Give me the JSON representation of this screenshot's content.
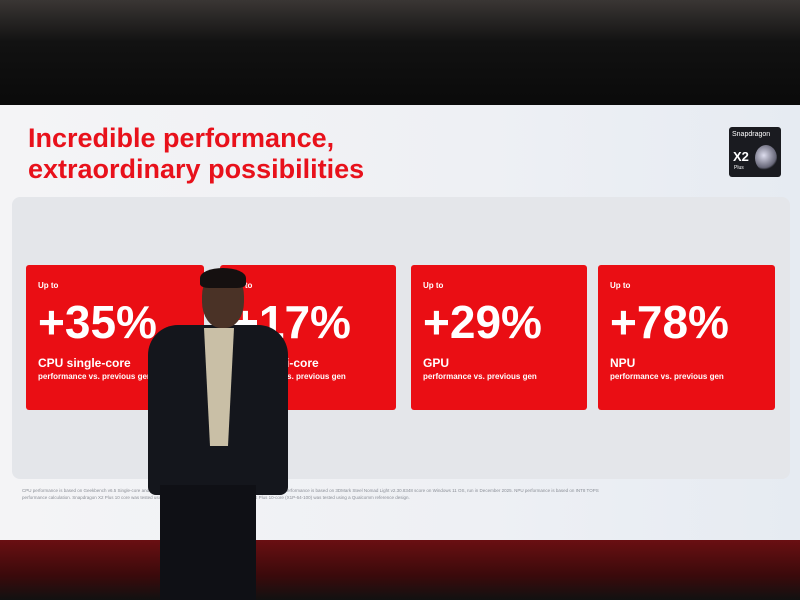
{
  "slide": {
    "title_line1": "Incredible performance,",
    "title_line2": "extraordinary possibilities",
    "logo": {
      "brand": "Snapdragon",
      "model": "X2",
      "tier": "Plus"
    },
    "cards": [
      {
        "up_to": "Up to",
        "value": "+35%",
        "label": "CPU single-core",
        "sub": "performance vs. previous gen"
      },
      {
        "up_to": "Up to",
        "value": "+17%",
        "label": "CPU multi-core",
        "sub": "performance vs. previous gen"
      },
      {
        "up_to": "Up to",
        "value": "+29%",
        "label": "GPU",
        "sub": "performance vs. previous gen"
      },
      {
        "up_to": "Up to",
        "value": "+78%",
        "label": "NPU",
        "sub": "performance vs. previous gen"
      }
    ],
    "footnote_line1": "CPU performance is based on Geekbench v6.5 Single-core and Multi-core scores on Windows 11 OS, run in December 2025. GPU performance is based on 3DMark Steel Nomad Light v2.30.8348 score on Windows 11 OS, run in December 2025. NPU performance is based on INT8 TOPS",
    "footnote_line2": "performance calculation. Snapdragon X2 Plus 10 core was tested using a Qualcomm reference design. Snapdragon X Plus 10-core (X1P-64-100) was tested using a Qualcomm reference design.",
    "accent": "#ea0e14"
  }
}
